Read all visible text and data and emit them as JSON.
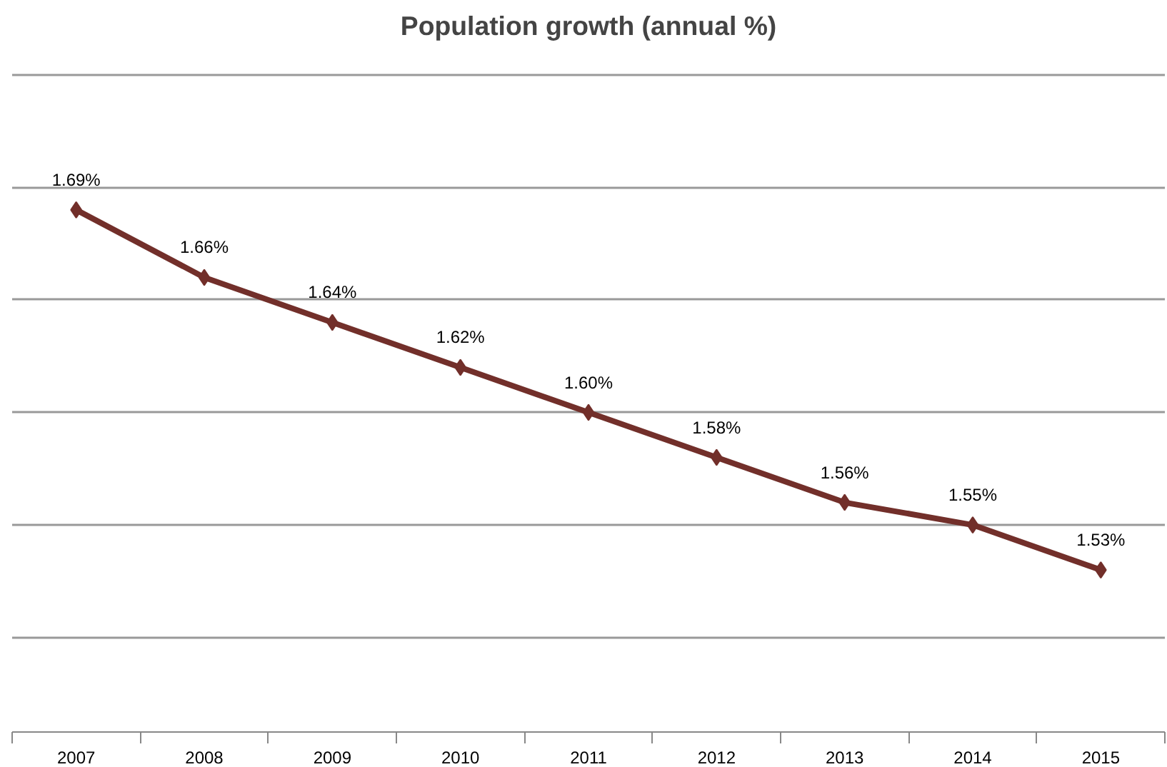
{
  "chart_data": {
    "type": "line",
    "title": "Population growth (annual %)",
    "categories": [
      "2007",
      "2008",
      "2009",
      "2010",
      "2011",
      "2012",
      "2013",
      "2014",
      "2015"
    ],
    "series": [
      {
        "color": "#722f2a",
        "values": [
          1.69,
          1.66,
          1.64,
          1.62,
          1.6,
          1.58,
          1.56,
          1.55,
          1.53
        ],
        "value_labels": [
          "1.69%",
          "1.66%",
          "1.64%",
          "1.62%",
          "1.60%",
          "1.58%",
          "1.56%",
          "1.55%",
          "1.53%"
        ]
      }
    ],
    "tick_labels": "x",
    "grid": "y",
    "marker": "diamond",
    "line_style": "solid"
  }
}
